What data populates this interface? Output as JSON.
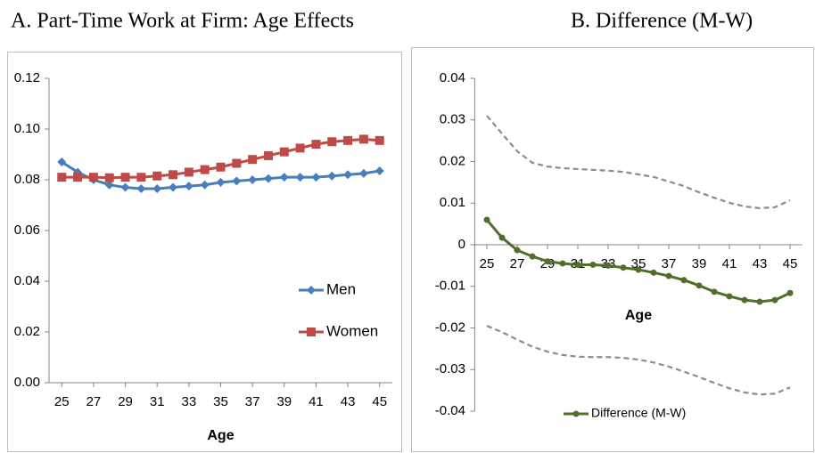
{
  "chart_data": [
    {
      "type": "line",
      "title": "A.  Part-Time Work at Firm: Age Effects",
      "xlabel": "Age",
      "x": [
        25,
        26,
        27,
        28,
        29,
        30,
        31,
        32,
        33,
        34,
        35,
        36,
        37,
        38,
        39,
        40,
        41,
        42,
        43,
        44,
        45
      ],
      "xlim": [
        24.2,
        45.8
      ],
      "xticks": [
        25,
        27,
        29,
        31,
        33,
        35,
        37,
        39,
        41,
        43,
        45
      ],
      "ylim": [
        0,
        0.12
      ],
      "yticks": [
        {
          "value": 0,
          "label": "0.00"
        },
        0.02,
        0.04,
        0.06,
        0.08,
        {
          "value": 0.1,
          "label": "0.10"
        },
        0.12
      ],
      "grid": false,
      "legend": "right",
      "series": [
        {
          "name": "Men",
          "color": "#4a7ebb",
          "marker": "diamond",
          "values": [
            0.087,
            0.083,
            0.08,
            0.078,
            0.077,
            0.0765,
            0.0765,
            0.077,
            0.0775,
            0.078,
            0.079,
            0.0795,
            0.08,
            0.0805,
            0.081,
            0.081,
            0.081,
            0.0815,
            0.082,
            0.0825,
            0.0835
          ]
        },
        {
          "name": "Women",
          "color": "#be4b48",
          "marker": "square",
          "values": [
            0.081,
            0.081,
            0.081,
            0.0808,
            0.081,
            0.081,
            0.0815,
            0.082,
            0.083,
            0.084,
            0.085,
            0.0865,
            0.088,
            0.0895,
            0.091,
            0.0925,
            0.094,
            0.095,
            0.0955,
            0.096,
            0.0955
          ]
        }
      ]
    },
    {
      "type": "line",
      "title": "B. Difference (M-W)",
      "xlabel": "Age",
      "x": [
        25,
        26,
        27,
        28,
        29,
        30,
        31,
        32,
        33,
        34,
        35,
        36,
        37,
        38,
        39,
        40,
        41,
        42,
        43,
        44,
        45
      ],
      "xlim": [
        24.2,
        45.8
      ],
      "xticks": [
        25,
        27,
        29,
        31,
        33,
        35,
        37,
        39,
        41,
        43,
        45
      ],
      "ylim": [
        -0.04,
        0.04
      ],
      "yticks": [
        -0.04,
        -0.03,
        -0.02,
        -0.01,
        0,
        0.01,
        0.02,
        0.03,
        0.04
      ],
      "grid": false,
      "legend": "bottom",
      "series": [
        {
          "name": "Difference (M-W)",
          "color": "#4f6f2a",
          "marker": "circle",
          "values": [
            0.006,
            0.0017,
            -0.0013,
            -0.0028,
            -0.004,
            -0.0045,
            -0.0048,
            -0.0048,
            -0.005,
            -0.0055,
            -0.006,
            -0.0067,
            -0.0075,
            -0.0085,
            -0.0098,
            -0.0113,
            -0.0124,
            -0.0133,
            -0.0137,
            -0.0133,
            -0.0116
          ]
        },
        {
          "color": "#8c8c8c",
          "dash": true,
          "values": [
            0.031,
            0.0267,
            0.0225,
            0.0197,
            0.0188,
            0.0184,
            0.0182,
            0.018,
            0.0178,
            0.0175,
            0.0169,
            0.0163,
            0.0152,
            0.0141,
            0.0126,
            0.0113,
            0.0101,
            0.0092,
            0.0088,
            0.009,
            0.0107
          ]
        },
        {
          "color": "#8c8c8c",
          "dash": true,
          "values": [
            -0.0195,
            -0.021,
            -0.0228,
            -0.0245,
            -0.0257,
            -0.0265,
            -0.0269,
            -0.027,
            -0.027,
            -0.0272,
            -0.0276,
            -0.0283,
            -0.0293,
            -0.0305,
            -0.0318,
            -0.0332,
            -0.0345,
            -0.0355,
            -0.036,
            -0.0358,
            -0.0343
          ]
        }
      ]
    }
  ]
}
